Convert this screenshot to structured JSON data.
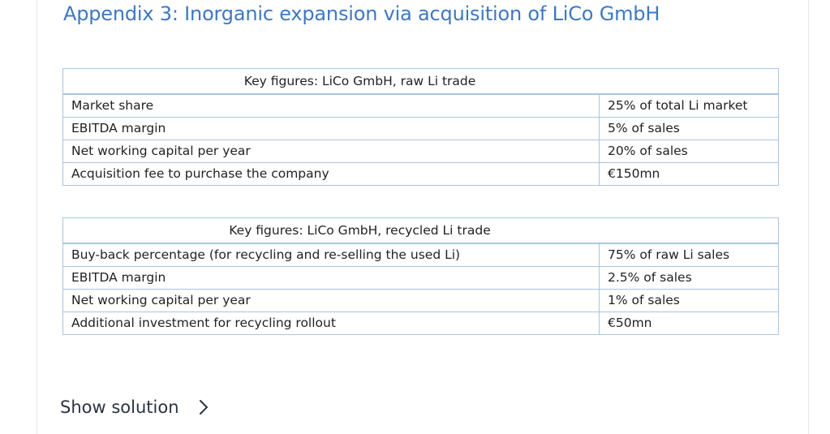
{
  "title": "Appendix 3: Inorganic expansion via acquisition of LiCo GmbH",
  "tables": [
    {
      "header": "Key figures: LiCo GmbH, raw Li trade",
      "rows": [
        {
          "label": "Market share",
          "value": "25% of total Li market"
        },
        {
          "label": "EBITDA margin",
          "value": "5% of sales"
        },
        {
          "label": "Net working capital per year",
          "value": "20% of sales"
        },
        {
          "label": "Acquisition fee to purchase the company",
          "value": "€150mn"
        }
      ]
    },
    {
      "header": "Key figures: LiCo GmbH, recycled Li trade",
      "rows": [
        {
          "label": "Buy-back percentage (for recycling and re-selling the used Li)",
          "value": "75% of raw Li sales"
        },
        {
          "label": "EBITDA margin",
          "value": "2.5% of sales"
        },
        {
          "label": "Net working capital per year",
          "value": "1% of sales"
        },
        {
          "label": "Additional investment for recycling rollout",
          "value": "€50mn"
        }
      ]
    }
  ],
  "show_solution": {
    "label": "Show solution",
    "icon": "chevron-right-icon"
  }
}
